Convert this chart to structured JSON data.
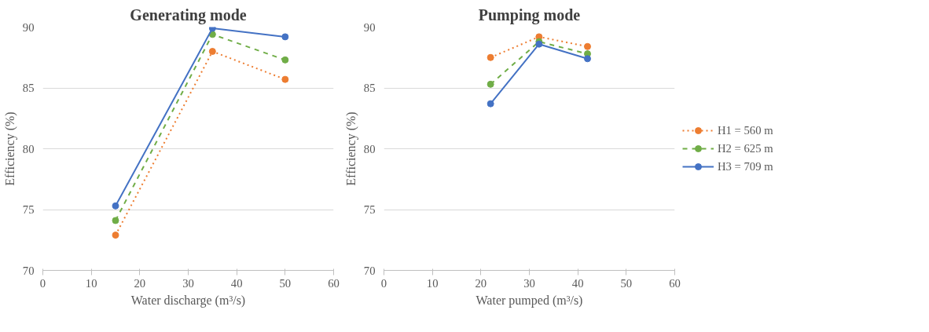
{
  "chart_data": [
    {
      "type": "line",
      "title": "Generating mode",
      "xlabel": "Water discharge (m³/s)",
      "ylabel": "Efficiency (%)",
      "x": [
        15,
        35,
        50
      ],
      "series": [
        {
          "color": "#ed7d31",
          "line_style": "dotted",
          "values": [
            72.9,
            88.0,
            85.7
          ]
        },
        {
          "color": "#70ad47",
          "line_style": "dashed",
          "values": [
            74.1,
            89.4,
            87.3
          ]
        },
        {
          "color": "#4472c4",
          "line_style": "solid",
          "values": [
            75.3,
            89.9,
            89.2
          ]
        }
      ],
      "xlim": [
        0,
        60
      ],
      "xticks": [
        0,
        10,
        20,
        30,
        40,
        50,
        60
      ],
      "ylim": [
        70,
        90
      ],
      "yticks": [
        70,
        75,
        80,
        85,
        90
      ],
      "grid": "y",
      "marker": "circle",
      "legend": false
    },
    {
      "type": "line",
      "title": "Pumping mode",
      "xlabel": "Water pumped (m³/s)",
      "ylabel": "Efficiency (%)",
      "x": [
        22,
        32,
        42
      ],
      "series": [
        {
          "name": "H1 = 560 m",
          "color": "#ed7d31",
          "line_style": "dotted",
          "values": [
            87.5,
            89.2,
            88.4
          ]
        },
        {
          "name": "H2 = 625 m",
          "color": "#70ad47",
          "line_style": "dashed",
          "values": [
            85.3,
            88.8,
            87.8
          ]
        },
        {
          "name": "H3 = 709 m",
          "color": "#4472c4",
          "line_style": "solid",
          "values": [
            83.7,
            88.6,
            87.4
          ]
        }
      ],
      "xlim": [
        0,
        60
      ],
      "xticks": [
        0,
        10,
        20,
        30,
        40,
        50,
        60
      ],
      "ylim": [
        70,
        90
      ],
      "yticks": [
        70,
        75,
        80,
        85,
        90
      ],
      "grid": "y",
      "marker": "circle",
      "legend": "right"
    }
  ]
}
